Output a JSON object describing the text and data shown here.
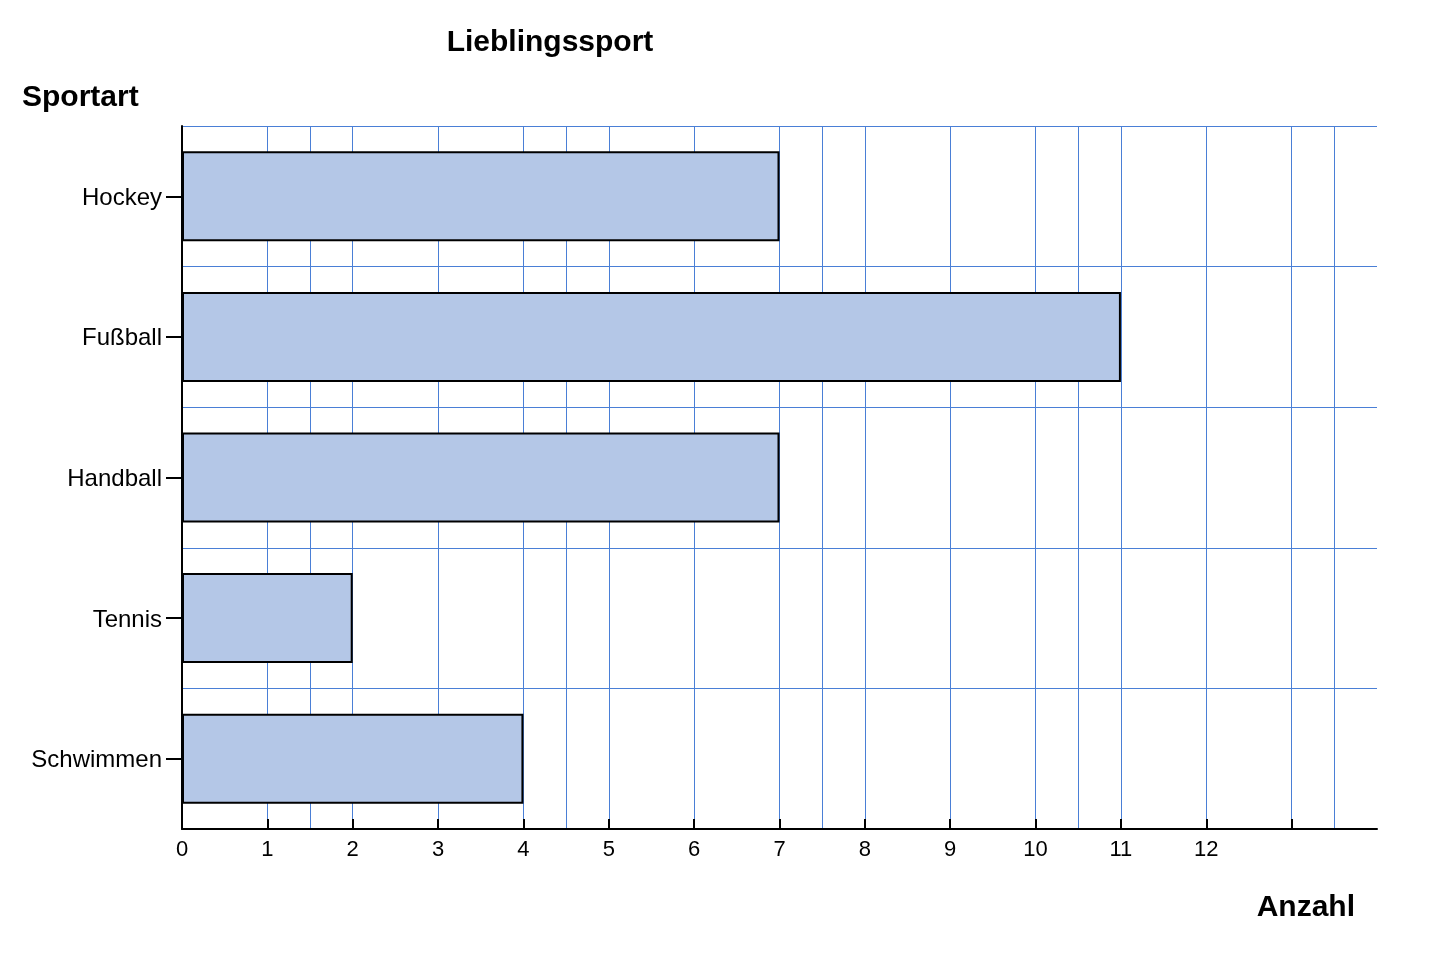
{
  "chart_data": {
    "type": "bar",
    "orientation": "horizontal",
    "title": "Lieblingssport",
    "xlabel": "Anzahl",
    "ylabel": "Sportart",
    "categories": [
      "Hockey",
      "Fußball",
      "Handball",
      "Tennis",
      "Schwimmen"
    ],
    "values": [
      7,
      11,
      7,
      2,
      4
    ],
    "color": "#b4c7e7",
    "xlim": [
      0,
      14
    ],
    "xticks": [
      0,
      1,
      2,
      3,
      4,
      5,
      6,
      7,
      8,
      9,
      10,
      11,
      12,
      {
        "value": 13,
        "label": null
      }
    ],
    "grid": true
  }
}
